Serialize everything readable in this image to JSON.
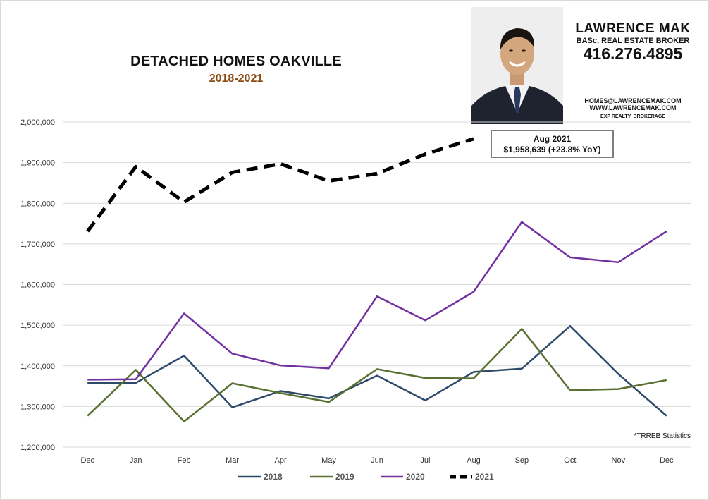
{
  "header": {
    "title": "DETACHED HOMES OAKVILLE",
    "subtitle": "2018-2021"
  },
  "broker": {
    "name": "LAWRENCE MAK",
    "title": "BASc, REAL ESTATE BROKER",
    "phone": "416.276.4895",
    "email": "HOMES@LAWRENCEMAK.COM",
    "website": "WWW.LAWRENCEMAK.COM",
    "brokerage": "EXP REALTY, BROKERAGE"
  },
  "callout": {
    "line1": "Aug 2021",
    "line2": "$1,958,639  (+23.8%  YoY)"
  },
  "source_note": "*TRREB Statistics",
  "chart_data": {
    "type": "line",
    "categories": [
      "Dec",
      "Jan",
      "Feb",
      "Mar",
      "Apr",
      "May",
      "Jun",
      "Jul",
      "Aug",
      "Sep",
      "Oct",
      "Nov",
      "Dec"
    ],
    "ylim": [
      1200000,
      2000000
    ],
    "yticks": [
      1200000,
      1300000,
      1400000,
      1500000,
      1600000,
      1700000,
      1800000,
      1900000,
      2000000
    ],
    "ytick_labels": [
      "1,200,000",
      "1,300,000",
      "1,400,000",
      "1,500,000",
      "1,600,000",
      "1,700,000",
      "1,800,000",
      "1,900,000",
      "2,000,000"
    ],
    "grid": "horizontal",
    "legend_position": "bottom",
    "series": [
      {
        "name": "2018",
        "color": "#2e4a6b",
        "dashed": false,
        "values": [
          1358000,
          1358000,
          1425000,
          1298000,
          1338000,
          1320000,
          1376000,
          1315000,
          1385000,
          1393000,
          1498000,
          1380000,
          1277000
        ]
      },
      {
        "name": "2019",
        "color": "#5a7031",
        "dashed": false,
        "values": [
          1277000,
          1390000,
          1263000,
          1357000,
          1333000,
          1311000,
          1392000,
          1370000,
          1369000,
          1491000,
          1340000,
          1343000,
          1365000
        ]
      },
      {
        "name": "2020",
        "color": "#7030a0",
        "dashed": false,
        "values": [
          1366000,
          1367000,
          1529000,
          1430000,
          1401000,
          1394000,
          1571000,
          1512000,
          1582000,
          1754000,
          1667000,
          1655000,
          1731000
        ]
      },
      {
        "name": "2021",
        "color": "#000000",
        "dashed": true,
        "values": [
          1731000,
          1890000,
          1803000,
          1876000,
          1897000,
          1855000,
          1873000,
          1921000,
          1958639,
          null,
          null,
          null,
          null
        ]
      }
    ]
  }
}
